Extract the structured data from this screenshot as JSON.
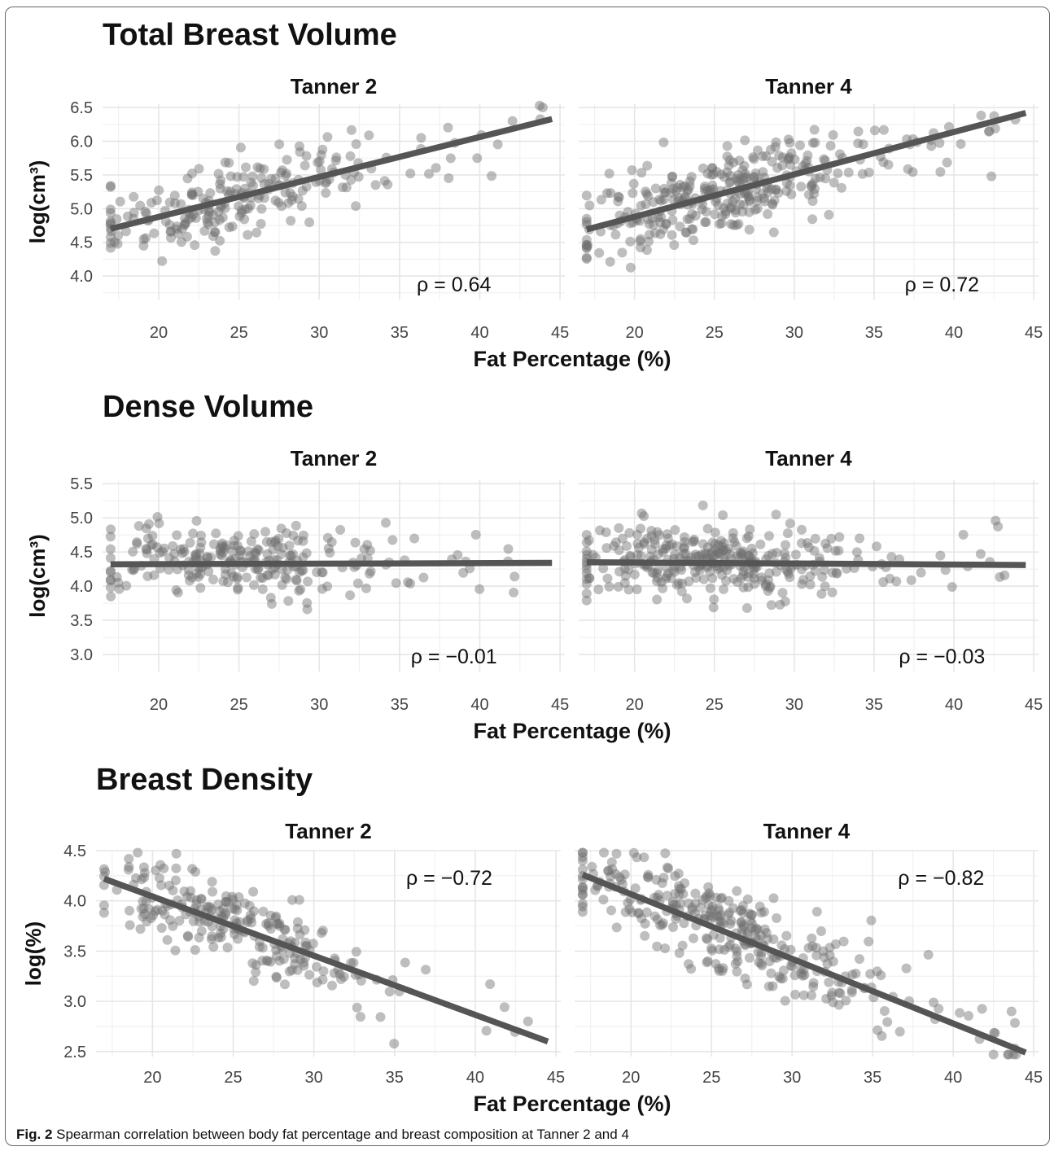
{
  "caption": {
    "label": "Fig. 2",
    "text": "Spearman correlation between body fat percentage and breast composition at Tanner 2 and 4"
  },
  "colors": {
    "point": "#6e6e6e",
    "line": "#555555",
    "grid": "#e6e6e6",
    "text": "#111111",
    "tick": "#444444"
  },
  "chart_data": [
    {
      "type": "scatter",
      "title": "Total Breast Volume",
      "xlabel": "Fat Percentage (%)",
      "ylabel": "log(cm³)",
      "xlim": [
        16.5,
        45.3
      ],
      "ylim": [
        3.65,
        6.55
      ],
      "xticks": [
        20,
        25,
        30,
        35,
        40,
        45
      ],
      "yticks": [
        4.0,
        4.5,
        5.0,
        5.5,
        6.0,
        6.5
      ],
      "grid": true,
      "panels": [
        {
          "name": "Tanner 2",
          "annotation": "ρ = 0.64",
          "trend": {
            "x": [
              17,
              44.5
            ],
            "y": [
              4.7,
              6.33
            ]
          },
          "points_n": 230,
          "seed": 11
        },
        {
          "name": "Tanner 4",
          "annotation": "ρ = 0.72",
          "trend": {
            "x": [
              17,
              44.5
            ],
            "y": [
              4.69,
              6.42
            ]
          },
          "points_n": 330,
          "seed": 23
        }
      ]
    },
    {
      "type": "scatter",
      "title": "Dense Volume",
      "xlabel": "Fat Percentage (%)",
      "ylabel": "log(cm³)",
      "xlim": [
        16.5,
        45.3
      ],
      "ylim": [
        2.75,
        5.55
      ],
      "xticks": [
        20,
        25,
        30,
        35,
        40,
        45
      ],
      "yticks": [
        3.0,
        3.5,
        4.0,
        4.5,
        5.0,
        5.5
      ],
      "grid": true,
      "panels": [
        {
          "name": "Tanner 2",
          "annotation": "ρ = −0.01",
          "trend": {
            "x": [
              17,
              44.5
            ],
            "y": [
              4.32,
              4.34
            ]
          },
          "points_n": 250,
          "seed": 37
        },
        {
          "name": "Tanner 4",
          "annotation": "ρ = −0.03",
          "trend": {
            "x": [
              17,
              44.5
            ],
            "y": [
              4.35,
              4.31
            ]
          },
          "points_n": 330,
          "seed": 41
        }
      ]
    },
    {
      "type": "scatter",
      "title": "Breast Density",
      "xlabel": "Fat Percentage (%)",
      "ylabel": "log(%)",
      "xlim": [
        16.5,
        45.3
      ],
      "ylim": [
        2.45,
        4.5
      ],
      "xticks": [
        20,
        25,
        30,
        35,
        40,
        45
      ],
      "yticks": [
        2.5,
        3.0,
        3.5,
        4.0,
        4.5
      ],
      "grid": true,
      "panels": [
        {
          "name": "Tanner 2",
          "annotation": "ρ = −0.72",
          "trend": {
            "x": [
              17,
              44.5
            ],
            "y": [
              4.22,
              2.6
            ]
          },
          "points_n": 240,
          "seed": 53
        },
        {
          "name": "Tanner 4",
          "annotation": "ρ = −0.82",
          "trend": {
            "x": [
              17,
              44.5
            ],
            "y": [
              4.26,
              2.49
            ]
          },
          "points_n": 330,
          "seed": 67
        }
      ]
    }
  ]
}
